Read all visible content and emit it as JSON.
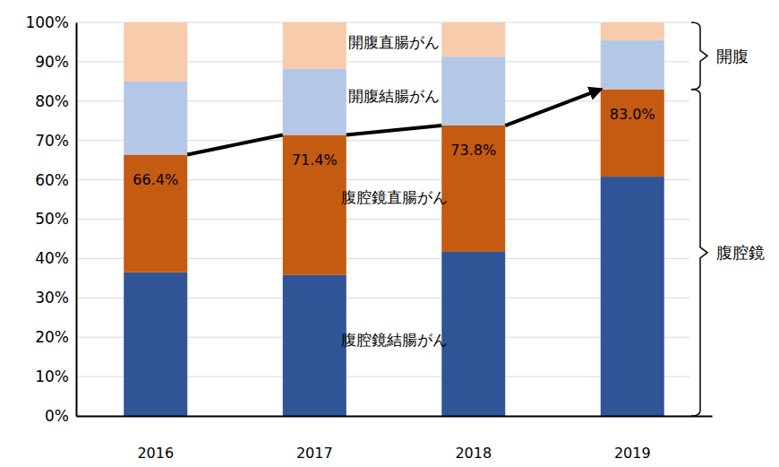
{
  "chart_data": {
    "type": "bar",
    "stacked": true,
    "grid": true,
    "categories": [
      "2016",
      "2017",
      "2018",
      "2019"
    ],
    "series": [
      {
        "name": "腹腔鏡結腸がん",
        "color": "#2f5597",
        "values": [
          36.5,
          35.8,
          41.7,
          60.8
        ]
      },
      {
        "name": "腹腔鏡直腸がん",
        "color": "#c55a11",
        "values": [
          29.9,
          35.6,
          32.1,
          22.2
        ]
      },
      {
        "name": "開腹結腸がん",
        "color": "#b4c7e7",
        "values": [
          18.6,
          16.9,
          17.5,
          12.5
        ]
      },
      {
        "name": "開腹直腸がん",
        "color": "#f8cbad",
        "values": [
          15.0,
          11.7,
          8.7,
          4.5
        ]
      }
    ],
    "ylim": [
      0,
      100
    ],
    "yticks": [
      {
        "value": 0,
        "label": "0%"
      },
      {
        "value": 10,
        "label": "10%"
      },
      {
        "value": 20,
        "label": "20%"
      },
      {
        "value": 30,
        "label": "30%"
      },
      {
        "value": 40,
        "label": "40%"
      },
      {
        "value": 50,
        "label": "50%"
      },
      {
        "value": 60,
        "label": "60%"
      },
      {
        "value": 70,
        "label": "70%"
      },
      {
        "value": 80,
        "label": "80%"
      },
      {
        "value": 90,
        "label": "90%"
      },
      {
        "value": 100,
        "label": "100%"
      }
    ],
    "annotations": [
      {
        "x": "2016",
        "y": 66.4,
        "label": "66.4%"
      },
      {
        "x": "2017",
        "y": 71.4,
        "label": "71.4%"
      },
      {
        "x": "2018",
        "y": 73.8,
        "label": "73.8%"
      },
      {
        "x": "2019",
        "y": 83.0,
        "label": "83.0%"
      }
    ],
    "brackets": [
      {
        "label": "開腹",
        "from": 83.0,
        "to": 100
      },
      {
        "label": "腹腔鏡",
        "from": 0,
        "to": 83.0
      }
    ]
  }
}
